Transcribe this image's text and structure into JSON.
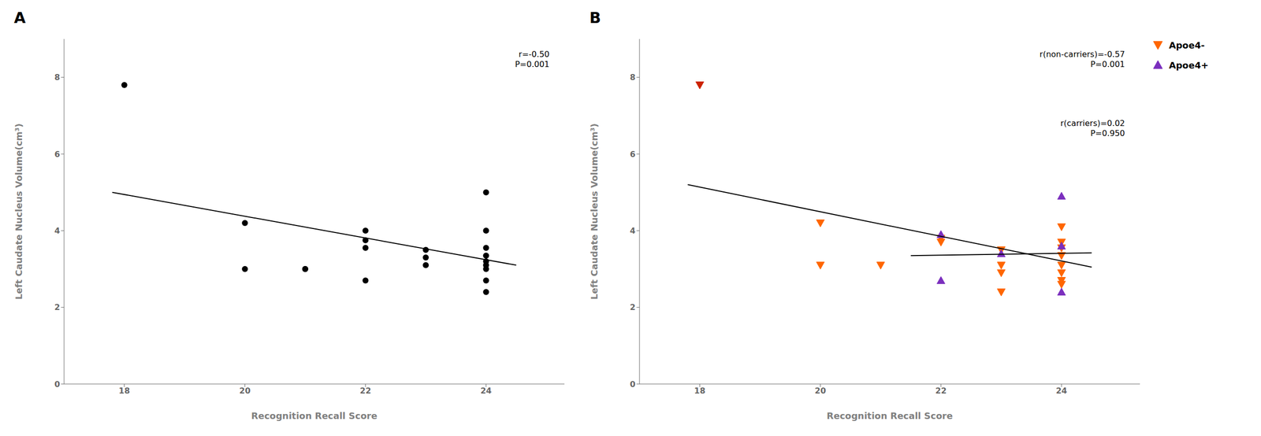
{
  "chart_data": [
    {
      "type": "scatter",
      "title": "A",
      "xlabel": "Recognition Recall  Score",
      "ylabel": "Left Caudate Nucleus Volume(cm³)",
      "annotations": [
        "r=-0.50\nP=0.001"
      ],
      "xlim": [
        17.0,
        25.3
      ],
      "ylim": [
        0,
        9
      ],
      "xticks": [
        18,
        20,
        22,
        24
      ],
      "yticks": [
        0,
        2,
        4,
        6,
        8
      ],
      "series": [
        {
          "type": "scatter",
          "marker": "circle",
          "color": "#000000",
          "x": [
            18,
            20,
            20,
            21,
            21,
            22,
            22,
            22,
            22,
            23,
            23,
            23,
            24,
            24,
            24,
            24,
            24,
            24,
            24,
            24,
            24
          ],
          "values": [
            7.8,
            4.2,
            3.0,
            3.0,
            3.0,
            4.0,
            3.75,
            3.55,
            2.7,
            3.5,
            3.3,
            3.1,
            5.0,
            4.0,
            3.55,
            3.35,
            3.2,
            3.1,
            3.0,
            2.7,
            2.4
          ]
        },
        {
          "type": "line",
          "color": "#000000",
          "x": [
            17.8,
            24.5
          ],
          "values": [
            5.0,
            3.1
          ]
        }
      ]
    },
    {
      "type": "scatter",
      "title": "B",
      "xlabel": "Recognition Recall  Score",
      "ylabel": "Left Caudate Nucleus Volume(cm³)",
      "annotations": [
        "r(non-carriers)=-0.57\nP=0.001",
        "r(carriers)=0.02\nP=0.950"
      ],
      "xlim": [
        17.0,
        25.3
      ],
      "ylim": [
        0,
        9
      ],
      "xticks": [
        18,
        20,
        22,
        24
      ],
      "yticks": [
        0,
        2,
        4,
        6,
        8
      ],
      "legend": "right",
      "series": [
        {
          "type": "scatter",
          "name": "Apoe4-",
          "marker": "triangle-down",
          "color": "#FF6600",
          "colors": [
            "#CC2200",
            "#FF6600",
            "#FF6600",
            "#FF6600",
            "#FF6600",
            "#FF6600",
            "#FF6600",
            "#FF6600",
            "#FF6600",
            "#FF6600",
            "#FF6600",
            "#FF6600",
            "#FF6600",
            "#FF6600",
            "#FF6600",
            "#FF6600",
            "#FF6600",
            "#FF6600"
          ],
          "x": [
            18,
            20,
            20,
            21,
            22,
            22,
            23,
            23,
            23,
            23,
            24,
            24,
            24,
            24,
            24,
            24,
            24,
            24
          ],
          "values": [
            7.8,
            4.2,
            3.1,
            3.1,
            3.8,
            3.7,
            3.5,
            3.1,
            2.9,
            2.4,
            4.1,
            3.7,
            3.55,
            3.35,
            3.1,
            2.9,
            2.7,
            2.6
          ]
        },
        {
          "type": "scatter",
          "name": "Apoe4+",
          "marker": "triangle-up",
          "color": "#7B2FBE",
          "x": [
            22,
            22,
            23,
            24,
            24,
            24
          ],
          "values": [
            3.9,
            2.7,
            3.4,
            4.9,
            3.6,
            2.4
          ]
        },
        {
          "type": "line",
          "color": "#000000",
          "x": [
            17.8,
            24.5
          ],
          "values": [
            5.2,
            3.05
          ]
        },
        {
          "type": "line",
          "color": "#000000",
          "x": [
            21.5,
            24.5
          ],
          "values": [
            3.35,
            3.42
          ]
        }
      ]
    }
  ]
}
